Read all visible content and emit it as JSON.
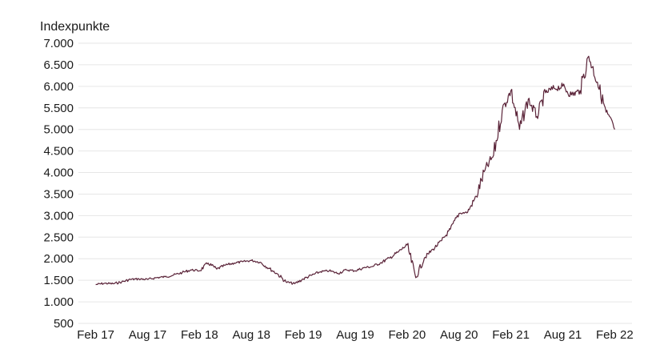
{
  "chart_data": {
    "type": "line",
    "ylabel": "Indexpunkte",
    "xlabel": "",
    "title": "",
    "ylim": [
      500,
      7000
    ],
    "y_ticks": [
      500,
      1000,
      1500,
      2000,
      2500,
      3000,
      3500,
      4000,
      4500,
      5000,
      5500,
      6000,
      6500,
      7000
    ],
    "y_tick_labels": [
      "500",
      "1.000",
      "1.500",
      "2.000",
      "2.500",
      "3.000",
      "3.500",
      "4.000",
      "4.500",
      "5.000",
      "5.500",
      "6.000",
      "6.500",
      "7.000"
    ],
    "x_ticks": [
      "2017-02",
      "2017-08",
      "2018-02",
      "2018-08",
      "2019-02",
      "2019-08",
      "2020-02",
      "2020-08",
      "2021-02",
      "2021-08",
      "2022-02"
    ],
    "x_tick_labels": [
      "Feb 17",
      "Aug 17",
      "Feb 18",
      "Aug 18",
      "Feb 19",
      "Aug 19",
      "Feb 20",
      "Aug 20",
      "Feb 21",
      "Aug 21",
      "Feb 22"
    ],
    "grid": true,
    "line_color": "#5a2338",
    "series": [
      {
        "x": [
          "2017-02",
          "2017-03",
          "2017-04",
          "2017-05",
          "2017-06",
          "2017-07",
          "2017-08",
          "2017-09",
          "2017-10",
          "2017-11",
          "2017-12",
          "2018-01",
          "2018-02",
          "2018-03",
          "2018-04",
          "2018-05",
          "2018-06",
          "2018-07",
          "2018-08",
          "2018-09",
          "2018-10",
          "2018-11",
          "2018-12",
          "2019-01",
          "2019-02",
          "2019-03",
          "2019-04",
          "2019-05",
          "2019-06",
          "2019-07",
          "2019-08",
          "2019-09",
          "2019-10",
          "2019-11",
          "2019-12",
          "2020-01",
          "2020-02",
          "2020-03",
          "2020-04",
          "2020-05",
          "2020-06",
          "2020-07",
          "2020-08",
          "2020-09",
          "2020-10",
          "2020-11",
          "2020-12",
          "2021-01",
          "2021-02",
          "2021-03",
          "2021-04",
          "2021-05",
          "2021-06",
          "2021-07",
          "2021-08",
          "2021-09",
          "2021-10",
          "2021-11",
          "2021-12",
          "2022-01",
          "2022-02"
        ],
        "values": [
          1400,
          1430,
          1420,
          1460,
          1520,
          1530,
          1520,
          1560,
          1580,
          1620,
          1680,
          1740,
          1720,
          1900,
          1760,
          1850,
          1900,
          1930,
          1960,
          1920,
          1780,
          1650,
          1460,
          1420,
          1530,
          1620,
          1700,
          1720,
          1660,
          1740,
          1720,
          1790,
          1820,
          1910,
          2020,
          2160,
          2320,
          1560,
          2020,
          2220,
          2420,
          2680,
          3050,
          3080,
          3450,
          4050,
          4400,
          5450,
          5900,
          5000,
          5700,
          5300,
          5850,
          5950,
          6000,
          5800,
          5900,
          6700,
          6100,
          5400,
          5000
        ]
      }
    ]
  }
}
